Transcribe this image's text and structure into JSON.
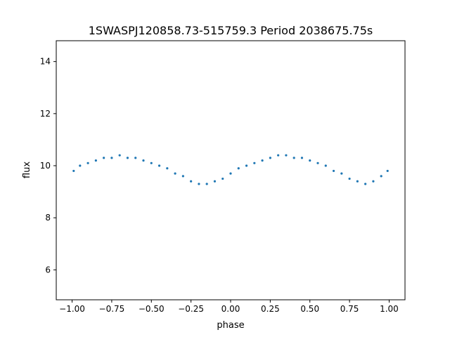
{
  "chart_data": {
    "type": "scatter",
    "title": "1SWASPJ120858.73-515759.3 Period 2038675.75s",
    "xlabel": "phase",
    "ylabel": "flux",
    "xlim": [
      -1.1,
      1.1
    ],
    "ylim": [
      4.85,
      14.8
    ],
    "x_ticks": [
      -1.0,
      -0.75,
      -0.5,
      -0.25,
      0.0,
      0.25,
      0.5,
      0.75,
      1.0
    ],
    "x_tick_labels": [
      "−1.00",
      "−0.75",
      "−0.50",
      "−0.25",
      "0.00",
      "0.25",
      "0.50",
      "0.75",
      "1.00"
    ],
    "y_ticks": [
      6,
      8,
      10,
      12,
      14
    ],
    "y_tick_labels": [
      "6",
      "8",
      "10",
      "12",
      "14"
    ],
    "grid": false,
    "legend": "none",
    "marker_color": "#1f77b4",
    "series": [
      {
        "x": [
          -0.99,
          -0.95,
          -0.9,
          -0.85,
          -0.8,
          -0.75,
          -0.7,
          -0.65,
          -0.6,
          -0.55,
          -0.5,
          -0.45,
          -0.4,
          -0.35,
          -0.3,
          -0.25,
          -0.2,
          -0.15,
          -0.1,
          -0.05,
          0.0,
          0.05,
          0.1,
          0.15,
          0.2,
          0.25,
          0.3,
          0.35,
          0.4,
          0.45,
          0.5,
          0.55,
          0.6,
          0.65,
          0.7,
          0.75,
          0.8,
          0.85,
          0.9,
          0.95,
          0.99
        ],
        "y": [
          9.8,
          10.0,
          10.1,
          10.2,
          10.3,
          10.3,
          10.4,
          10.3,
          10.3,
          10.2,
          10.1,
          10.0,
          9.9,
          9.7,
          9.6,
          9.4,
          9.3,
          9.3,
          9.4,
          9.5,
          9.7,
          9.9,
          10.0,
          10.1,
          10.2,
          10.3,
          10.4,
          10.4,
          10.3,
          10.3,
          10.2,
          10.1,
          10.0,
          9.8,
          9.7,
          9.5,
          9.4,
          9.3,
          9.4,
          9.6,
          9.8
        ]
      }
    ]
  }
}
